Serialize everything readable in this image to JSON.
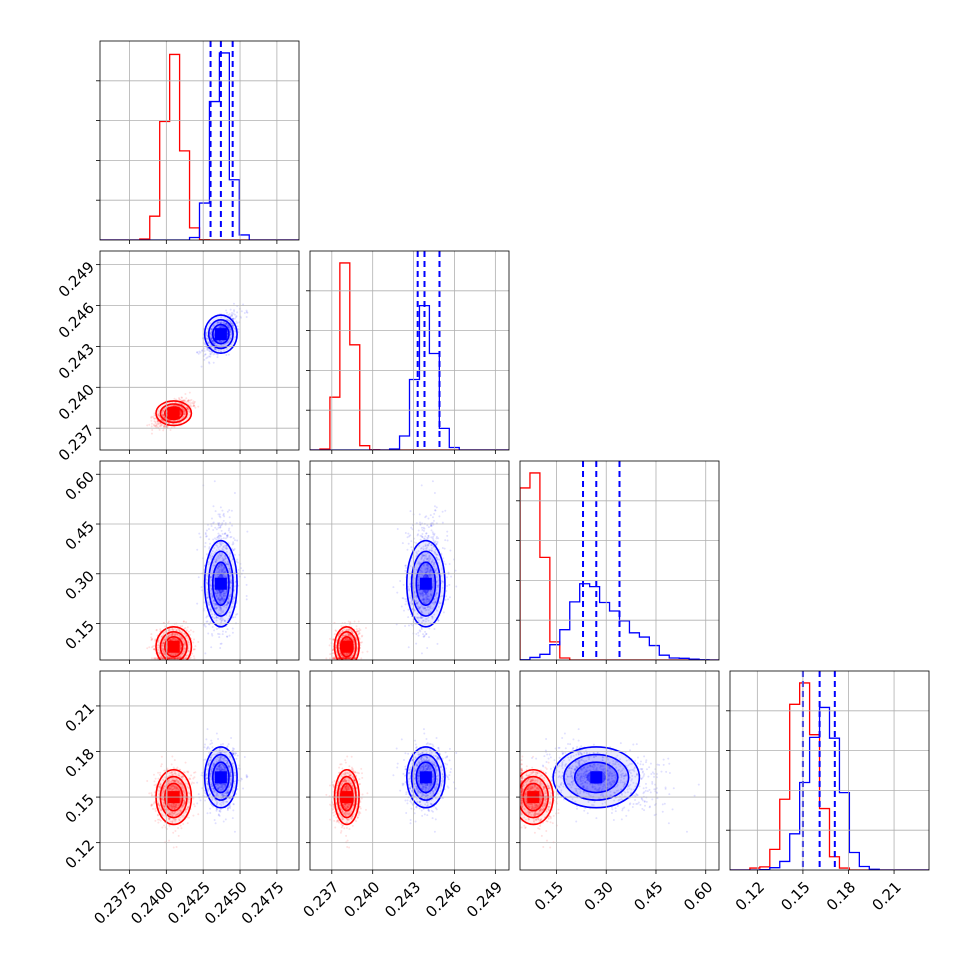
{
  "chart_data": {
    "type": "scatter",
    "title": "",
    "subplot_kind": "corner plot (pairwise 2D contour/scatter panels with 1D histograms on the diagonal)",
    "grid": true,
    "parameters": [
      {
        "range": [
          0.2355,
          0.249
        ],
        "ticks": [
          "0.2375",
          "0.2400",
          "0.2425",
          "0.2450",
          "0.2475"
        ],
        "tick_values": [
          0.2375,
          0.24,
          0.2425,
          0.245,
          0.2475
        ]
      },
      {
        "range": [
          0.2354,
          0.25
        ],
        "ticks": [
          "0.237",
          "0.240",
          "0.243",
          "0.246",
          "0.249"
        ],
        "tick_values": [
          0.237,
          0.24,
          0.243,
          0.246,
          0.249
        ]
      },
      {
        "range": [
          0.04,
          0.64
        ],
        "ticks": [
          "0.15",
          "0.30",
          "0.45",
          "0.60"
        ],
        "tick_values": [
          0.15,
          0.3,
          0.45,
          0.6
        ]
      },
      {
        "range": [
          0.102,
          0.233
        ],
        "ticks": [
          "0.12",
          "0.15",
          "0.18",
          "0.21"
        ],
        "tick_values": [
          0.12,
          0.15,
          0.18,
          0.21
        ]
      }
    ],
    "series": [
      {
        "color": "#ff0000",
        "center": [
          0.2405,
          0.2381,
          0.08,
          0.15
        ],
        "sigma": [
          0.0006,
          0.00045,
          0.03,
          0.009
        ]
      },
      {
        "color": "#0000ff",
        "center": [
          0.2437,
          0.2439,
          0.27,
          0.163
        ],
        "sigma": [
          0.00055,
          0.0007,
          0.065,
          0.01
        ],
        "quantiles": [
          [
            0.243,
            0.2437,
            0.2445
          ],
          [
            0.2433,
            0.2438,
            0.2449
          ],
          [
            0.23,
            0.27,
            0.34
          ],
          [
            0.15,
            0.161,
            0.171
          ]
        ]
      }
    ]
  }
}
